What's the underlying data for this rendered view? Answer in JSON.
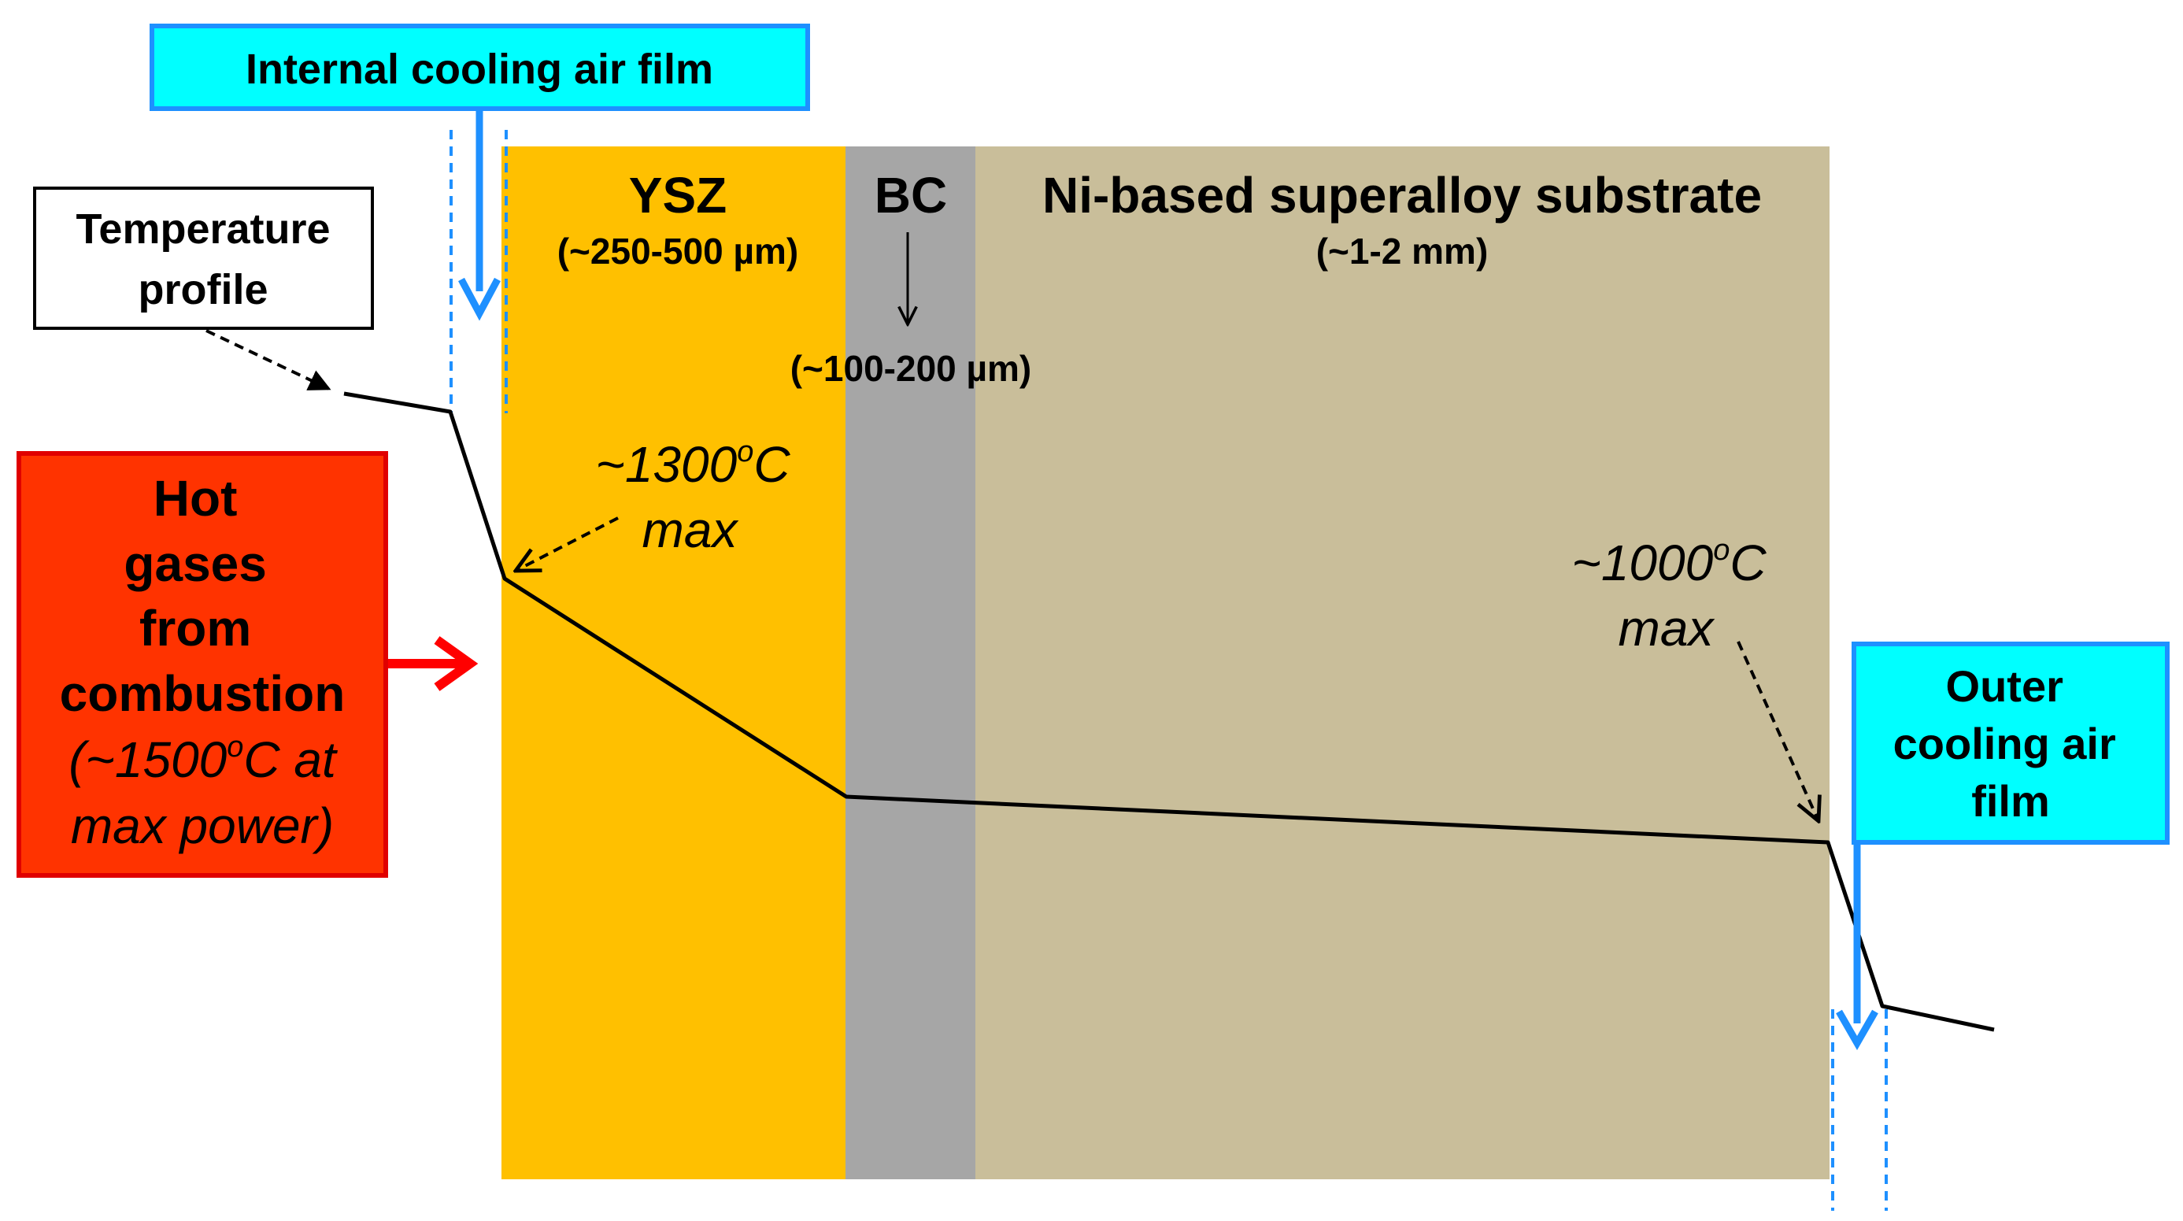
{
  "colors": {
    "ysz": "#FFC000",
    "bond_coat": "#A6A6A6",
    "substrate": "#C9BE9A",
    "cooling_box": "#00FFFF",
    "cooling_border": "#1E90FF",
    "hot_box": "#FF3300",
    "hot_border": "#E00000",
    "hot_arrow": "#FF0000",
    "profile": "#000000"
  },
  "labels": {
    "internal_cooling": "Internal cooling air film",
    "temperature_profile_line1": "Temperature",
    "temperature_profile_line2": "profile",
    "hot_gases": [
      "Hot",
      "gases",
      "from",
      "combustion"
    ],
    "hot_gases_temp": [
      "(~1500",
      "o",
      "C at",
      "max power)"
    ],
    "ysz_title": "YSZ",
    "ysz_thickness": "(~250-500 µm)",
    "bc_title": "BC",
    "bc_thickness": "(~100-200 µm)",
    "substrate_title": "Ni-based superalloy substrate",
    "substrate_thickness": "(~1-2 mm)",
    "max_temp_ysz": [
      "~1300",
      "o",
      "C",
      "max"
    ],
    "max_temp_substrate": [
      "~1000",
      "o",
      "C",
      "max"
    ],
    "outer_cooling": [
      "Outer",
      "cooling air",
      "film"
    ]
  }
}
